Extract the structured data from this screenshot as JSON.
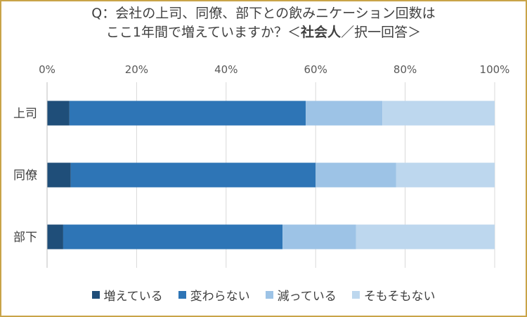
{
  "chart_data": {
    "type": "bar",
    "orientation": "horizontal",
    "stacked": true,
    "title_line1": "Q：会社の上司、同僚、部下との飲みニケーション回数は",
    "title_line2_normal": "ここ1年間で増えていますか？＜",
    "title_line2_bold": "社会人",
    "title_line2_tail": "／択一回答＞",
    "categories": [
      "上司",
      "同僚",
      "部下"
    ],
    "x_ticks": [
      "0%",
      "20%",
      "40%",
      "60%",
      "80%",
      "100%"
    ],
    "xlim": [
      0,
      100
    ],
    "grid": true,
    "legend_position": "bottom",
    "series": [
      {
        "name": "増えている",
        "color": "#1f4e79",
        "values": [
          5.0,
          5.3,
          3.6
        ]
      },
      {
        "name": "変わらない",
        "color": "#2e75b6",
        "values": [
          52.8,
          54.7,
          49.0
        ]
      },
      {
        "name": "減っている",
        "color": "#9dc3e6",
        "values": [
          17.1,
          18.0,
          16.4
        ]
      },
      {
        "name": "そもそもない",
        "color": "#bdd7ee",
        "values": [
          25.1,
          22.0,
          31.0
        ]
      }
    ]
  }
}
